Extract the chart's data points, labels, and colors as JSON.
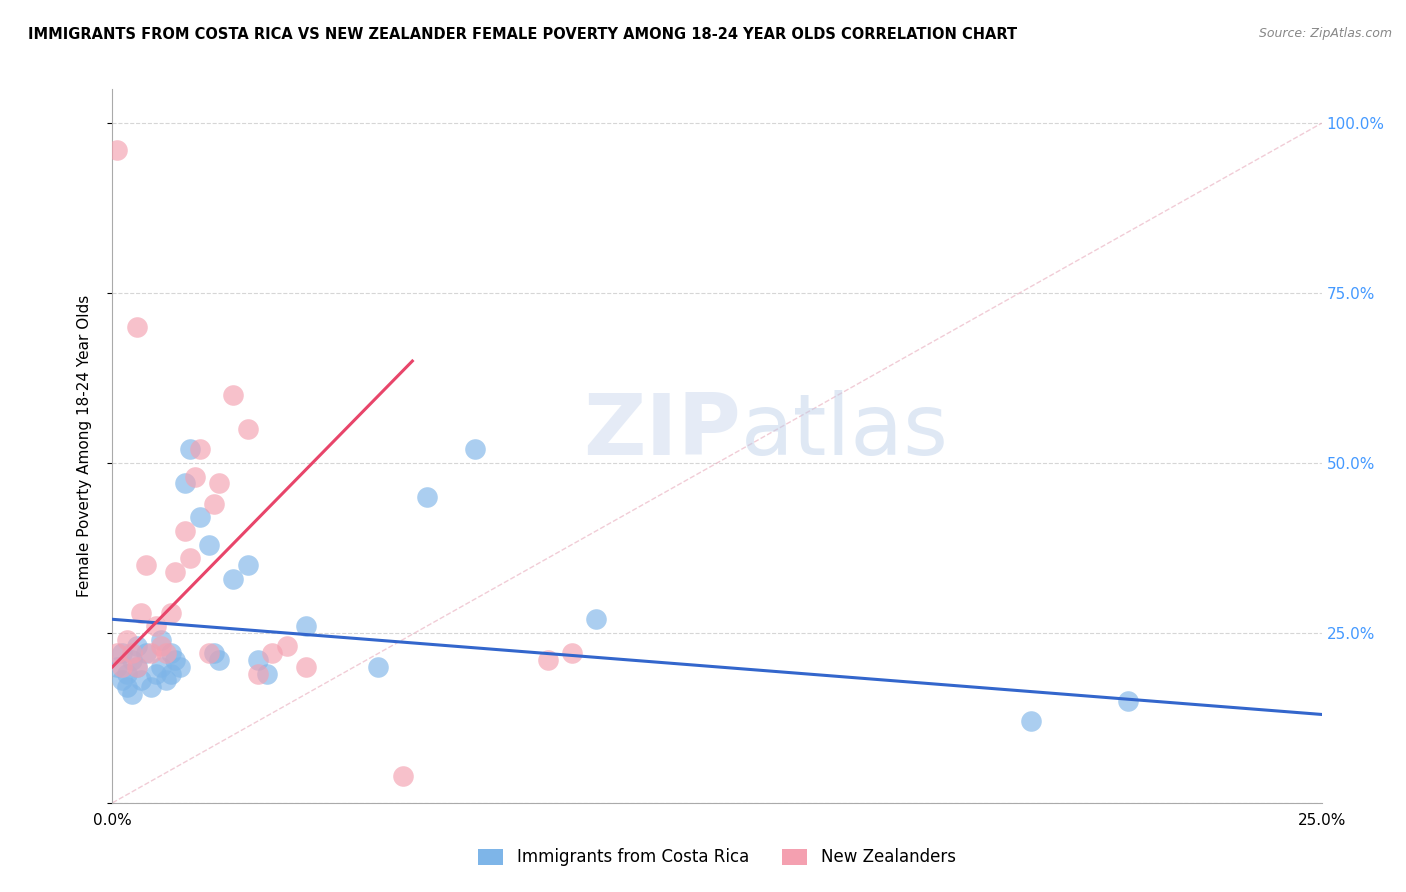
{
  "title": "IMMIGRANTS FROM COSTA RICA VS NEW ZEALANDER FEMALE POVERTY AMONG 18-24 YEAR OLDS CORRELATION CHART",
  "source": "Source: ZipAtlas.com",
  "ylabel": "Female Poverty Among 18-24 Year Olds",
  "xlim": [
    0.0,
    0.25
  ],
  "ylim": [
    0.0,
    1.05
  ],
  "yticks": [
    0.0,
    0.25,
    0.5,
    0.75,
    1.0
  ],
  "yticklabels_right": [
    "",
    "25.0%",
    "50.0%",
    "75.0%",
    "100.0%"
  ],
  "xtick_left": "0.0%",
  "xtick_right": "25.0%",
  "legend_blue_label": "Immigrants from Costa Rica",
  "legend_pink_label": "New Zealanders",
  "blue_color": "#7EB5E8",
  "pink_color": "#F4A0B0",
  "line_blue_color": "#3366CC",
  "line_pink_color": "#E8456A",
  "blue_scatter_x": [
    0.001,
    0.002,
    0.002,
    0.003,
    0.003,
    0.004,
    0.004,
    0.005,
    0.005,
    0.006,
    0.007,
    0.008,
    0.009,
    0.01,
    0.01,
    0.011,
    0.012,
    0.012,
    0.013,
    0.014,
    0.015,
    0.016,
    0.018,
    0.02,
    0.021,
    0.022,
    0.025,
    0.028,
    0.03,
    0.032,
    0.04,
    0.055,
    0.065,
    0.075,
    0.1,
    0.19,
    0.21
  ],
  "blue_scatter_y": [
    0.2,
    0.18,
    0.22,
    0.17,
    0.19,
    0.21,
    0.16,
    0.2,
    0.23,
    0.18,
    0.22,
    0.17,
    0.19,
    0.2,
    0.24,
    0.18,
    0.22,
    0.19,
    0.21,
    0.2,
    0.47,
    0.52,
    0.42,
    0.38,
    0.22,
    0.21,
    0.33,
    0.35,
    0.21,
    0.19,
    0.26,
    0.2,
    0.45,
    0.52,
    0.27,
    0.12,
    0.15
  ],
  "pink_scatter_x": [
    0.001,
    0.001,
    0.002,
    0.003,
    0.004,
    0.005,
    0.005,
    0.006,
    0.007,
    0.008,
    0.009,
    0.01,
    0.011,
    0.012,
    0.013,
    0.015,
    0.016,
    0.017,
    0.018,
    0.02,
    0.021,
    0.022,
    0.025,
    0.028,
    0.03,
    0.033,
    0.036,
    0.04,
    0.06,
    0.09,
    0.095
  ],
  "pink_scatter_y": [
    0.22,
    0.96,
    0.2,
    0.24,
    0.22,
    0.2,
    0.7,
    0.28,
    0.35,
    0.22,
    0.26,
    0.23,
    0.22,
    0.28,
    0.34,
    0.4,
    0.36,
    0.48,
    0.52,
    0.22,
    0.44,
    0.47,
    0.6,
    0.55,
    0.19,
    0.22,
    0.23,
    0.2,
    0.04,
    0.21,
    0.22
  ],
  "blue_line_x0": 0.0,
  "blue_line_x1": 0.25,
  "blue_line_y0": 0.27,
  "blue_line_y1": 0.13,
  "pink_line_x0": 0.0,
  "pink_line_x1": 0.062,
  "pink_line_y0": 0.2,
  "pink_line_y1": 0.65,
  "diag_line_x0": 0.0,
  "diag_line_x1": 0.25,
  "diag_line_y0": 0.0,
  "diag_line_y1": 1.0
}
